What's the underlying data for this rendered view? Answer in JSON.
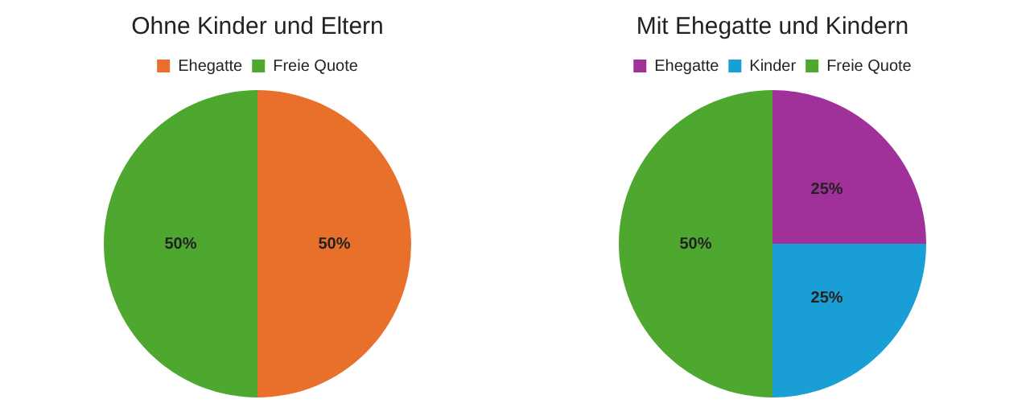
{
  "chart_data": [
    {
      "type": "pie",
      "title": "Ohne Kinder und Eltern",
      "categories": [
        "Ehegatte",
        "Freie Quote"
      ],
      "values": [
        50,
        50
      ],
      "colors": [
        "#e8702a",
        "#4ea72e"
      ],
      "value_labels": [
        "50%",
        "50%"
      ],
      "legend": "top"
    },
    {
      "type": "pie",
      "title": "Mit Ehegatte und Kindern",
      "categories": [
        "Ehegatte",
        "Kinder",
        "Freie Quote"
      ],
      "values": [
        25,
        25,
        50
      ],
      "colors": [
        "#a0309a",
        "#1a9ed6",
        "#4ea72e"
      ],
      "value_labels": [
        "25%",
        "25%",
        "50%"
      ],
      "legend": "top"
    }
  ]
}
